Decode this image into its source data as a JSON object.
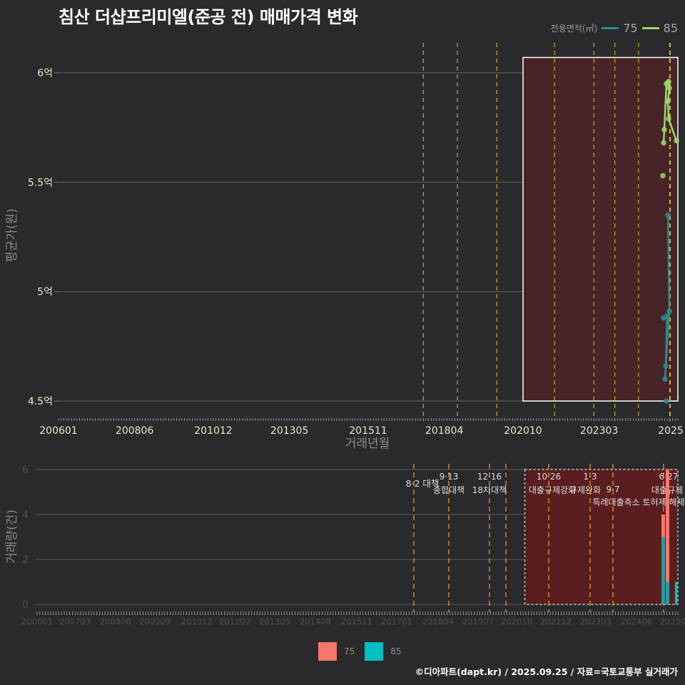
{
  "title": "침산 더샵프리미엘(준공 전) 매매가격 변화",
  "legend_top": {
    "label": "전용면적(㎡)",
    "items": [
      {
        "name": "75",
        "color": "#2a8c8c"
      },
      {
        "name": "85",
        "color": "#9ad86a"
      }
    ]
  },
  "legend_bottom": {
    "items": [
      {
        "name": "75",
        "color": "#f8766d"
      },
      {
        "name": "85",
        "color": "#00bfc4"
      }
    ]
  },
  "footer": "©디아파트(dapt.kr) / 2025.09.25 / 자료=국토교통부 실거래가",
  "chart_data": [
    {
      "type": "line",
      "title": "침산 더샵프리미엘(준공 전) 매매가격 변화",
      "xlabel": "거래년월",
      "ylabel": "평균가(원)",
      "x_tick_labels": [
        "200601",
        "200806",
        "201012",
        "201305",
        "201511",
        "201804",
        "202010",
        "202303",
        "2025"
      ],
      "y_tick_labels": [
        "4.5억",
        "5억",
        "5.5억",
        "6억"
      ],
      "ylim": [
        4.45,
        6.15
      ],
      "y_unit": "억",
      "highlight_box": {
        "x_from": "202010",
        "x_to": "202509",
        "y_from": 4.5,
        "y_to": 6.07
      },
      "policy_lines_x": [
        "201708",
        "201809",
        "201912",
        "202110",
        "202301",
        "202309",
        "202406",
        "202506"
      ],
      "series": [
        {
          "name": "75",
          "color": "#2a8c8c",
          "points": [
            {
              "x": "202505",
              "y": 4.88
            },
            {
              "x": "202506",
              "y": 4.89
            },
            {
              "x": "202506",
              "y": 4.66
            },
            {
              "x": "202506",
              "y": 4.6
            },
            {
              "x": "202507",
              "y": 4.91
            },
            {
              "x": "202507",
              "y": 5.35
            },
            {
              "x": "202506",
              "y": 4.5
            }
          ]
        },
        {
          "name": "85",
          "color": "#9ad86a",
          "points": [
            {
              "x": "202505",
              "y": 5.68
            },
            {
              "x": "202505",
              "y": 5.74
            },
            {
              "x": "202506",
              "y": 5.95
            },
            {
              "x": "202506",
              "y": 5.96
            },
            {
              "x": "202507",
              "y": 5.93
            },
            {
              "x": "202507",
              "y": 5.87
            },
            {
              "x": "202507",
              "y": 5.79
            },
            {
              "x": "202509",
              "y": 5.69
            },
            {
              "x": "202505",
              "y": 5.53
            }
          ]
        }
      ]
    },
    {
      "type": "bar",
      "xlabel": "",
      "ylabel": "거래량(건)",
      "x_tick_labels": [
        "200601",
        "200703",
        "200806",
        "200909",
        "201012",
        "201202",
        "201305",
        "201408",
        "201511",
        "201701",
        "201804",
        "201907",
        "202010",
        "202112",
        "202303",
        "202406",
        "20250"
      ],
      "y_tick_labels": [
        "0",
        "2",
        "4",
        "6"
      ],
      "ylim": [
        0,
        6
      ],
      "highlight_box": {
        "x_from": "202010",
        "x_to": "202509",
        "y_from": 0,
        "y_to": 6
      },
      "annotations": [
        {
          "date": "201708",
          "line1": "8·2 대책",
          "line2": ""
        },
        {
          "date": "201809",
          "line1": "9·13",
          "line2": "종합대책"
        },
        {
          "date": "201912",
          "line1": "12·16",
          "line2": "18차대책"
        },
        {
          "date": "202010",
          "line1": "",
          "line2": ""
        },
        {
          "date": "202110",
          "line1": "10·26",
          "line2": "대출규제강화"
        },
        {
          "date": "202301",
          "line1": "1·3",
          "line2": "규제완화"
        },
        {
          "date": "202309",
          "line1": "9·7",
          "line2": "특례대출축소 토허제 해제"
        },
        {
          "date": "202506",
          "line1": "6·27",
          "line2": "대출규제"
        }
      ],
      "series": [
        {
          "name": "75",
          "color": "#f8766d",
          "values": [
            {
              "x": "202505",
              "y": 4
            },
            {
              "x": "202506",
              "y": 6
            }
          ]
        },
        {
          "name": "85",
          "color": "#00bfc4",
          "values": [
            {
              "x": "202505",
              "y": 3
            },
            {
              "x": "202506",
              "y": 1
            },
            {
              "x": "202509",
              "y": 1
            }
          ]
        }
      ]
    }
  ]
}
